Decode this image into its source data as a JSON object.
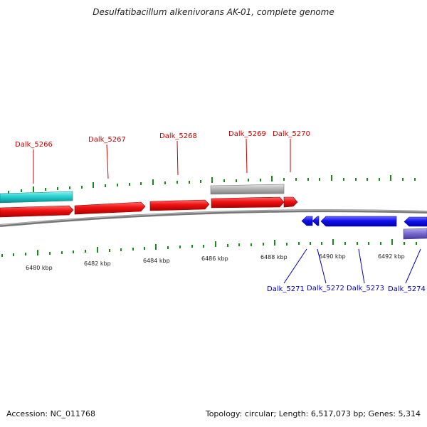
{
  "title": "Desulfatibacillum alkenivorans AK-01, complete genome",
  "footer": {
    "accession": "Accession: NC_011768",
    "summary": "Topology: circular; Length: 6,517,073 bp; Genes: 5,314"
  },
  "colors": {
    "forward_cds": "#ee1111",
    "reverse_cds": "#1111ee",
    "forward_label": "#cc0000",
    "reverse_label": "#0000bb",
    "tick": "#1a8a1a",
    "backbone": "#777777",
    "cyan_feature": "#22cccc",
    "gray_feature": "#aaaaaa",
    "purple_feature": "#7766cc"
  },
  "kbp_labels": [
    "6480 kbp",
    "6482 kbp",
    "6484 kbp",
    "6486 kbp",
    "6488 kbp",
    "6490 kbp",
    "6492 kbp"
  ],
  "forward_genes": [
    "Dalk_5266",
    "Dalk_5267",
    "Dalk_5268",
    "Dalk_5269",
    "Dalk_5270"
  ],
  "reverse_genes": [
    "Dalk_5271",
    "Dalk_5272",
    "Dalk_5273",
    "Dalk_5274"
  ]
}
